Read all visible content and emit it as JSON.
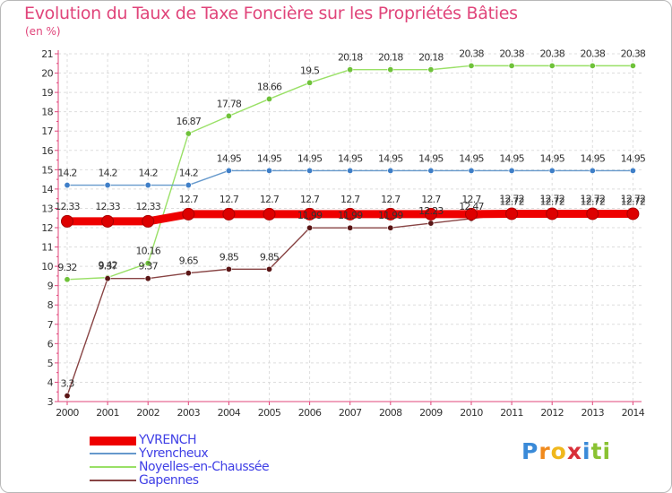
{
  "header": {
    "title": "Evolution du Taux de Taxe Foncière sur les Propriétés Bâties",
    "unit": "(en %)"
  },
  "brand": {
    "letters": [
      "P",
      "r",
      "o",
      "x",
      "i",
      "t",
      "i"
    ],
    "colors": [
      "#3a8ad8",
      "#f08a1d",
      "#f0b81d",
      "#d8303a",
      "#3a8ad8",
      "#8ac232",
      "#8ac232"
    ]
  },
  "chart_data": {
    "type": "line",
    "title": "Evolution du Taux de Taxe Foncière sur les Propriétés Bâties",
    "ylabel": "(en %)",
    "xlabel": "",
    "x": [
      "2000",
      "2001",
      "2002",
      "2003",
      "2004",
      "2005",
      "2006",
      "2007",
      "2008",
      "2009",
      "2010",
      "2011",
      "2012",
      "2013",
      "2014"
    ],
    "ylim": [
      3,
      21
    ],
    "yticks": [
      3,
      4,
      5,
      6,
      7,
      8,
      9,
      10,
      11,
      12,
      13,
      14,
      15,
      16,
      17,
      18,
      19,
      20,
      21
    ],
    "grid": true,
    "legend_position": "bottom-left",
    "series": [
      {
        "name": "YVRENCH",
        "color": "#ee0000",
        "marker": "#dd0000",
        "values": [
          12.33,
          12.33,
          12.33,
          12.7,
          12.7,
          12.7,
          12.7,
          12.7,
          12.7,
          12.7,
          12.7,
          12.72,
          12.72,
          12.72,
          12.72
        ],
        "labels": [
          "12.33",
          "12.33",
          "12.33",
          "12.7",
          "12.7",
          "12.7",
          "12.7",
          "12.7",
          "12.7",
          "12.7",
          "12.7",
          "12.72",
          "12.72",
          "12.72",
          "12.72"
        ]
      },
      {
        "name": "Yvrencheux",
        "color": "#6699cc",
        "marker": "#3f7fc8",
        "values": [
          14.2,
          14.2,
          14.2,
          14.2,
          14.95,
          14.95,
          14.95,
          14.95,
          14.95,
          14.95,
          14.95,
          14.95,
          14.95,
          14.95,
          14.95
        ],
        "labels": [
          "14.2",
          "14.2",
          "14.2",
          "14.2",
          "14.95",
          "14.95",
          "14.95",
          "14.95",
          "14.95",
          "14.95",
          "14.95",
          "14.95",
          "14.95",
          "14.95",
          "14.95"
        ]
      },
      {
        "name": "Noyelles-en-Chaussée",
        "color": "#99e066",
        "marker": "#6fc23a",
        "values": [
          9.32,
          9.42,
          10.16,
          16.87,
          17.78,
          18.66,
          19.5,
          20.18,
          20.18,
          20.18,
          20.38,
          20.38,
          20.38,
          20.38,
          20.38
        ],
        "labels": [
          "9.32",
          "9.42",
          "10.16",
          "16.87",
          "17.78",
          "18.66",
          "19.5",
          "20.18",
          "20.18",
          "20.18",
          "20.38",
          "20.38",
          "20.38",
          "20.38",
          "20.38"
        ]
      },
      {
        "name": "Gapennes",
        "color": "#884444",
        "marker": "#5a1515",
        "values": [
          3.3,
          9.37,
          9.37,
          9.65,
          9.85,
          9.85,
          11.99,
          11.99,
          11.99,
          12.23,
          12.47,
          12.72,
          12.72,
          12.72,
          12.72
        ],
        "labels": [
          "3.3",
          "9.37",
          "9.37",
          "9.65",
          "9.85",
          "9.85",
          "11.99",
          "11.99",
          "11.99",
          "12.23",
          "12.47",
          "12.72",
          "12.72",
          "12.72",
          "12.72"
        ]
      }
    ]
  }
}
